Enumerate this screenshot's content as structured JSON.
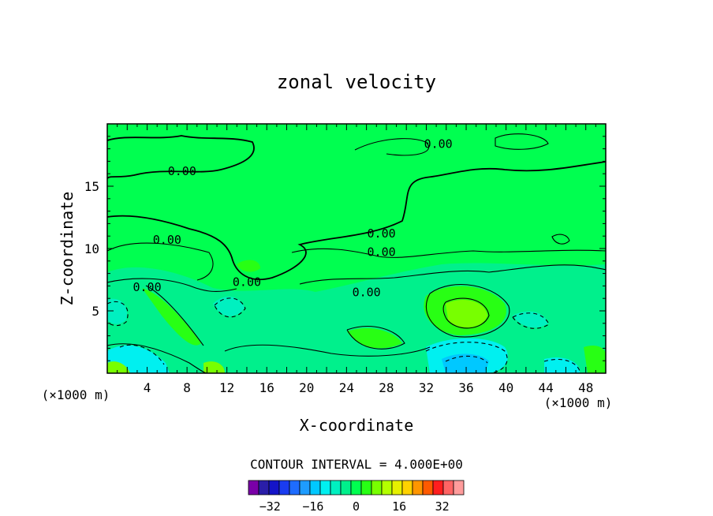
{
  "chart_data": {
    "type": "heatmap",
    "subtype": "filled-contour",
    "title": "zonal velocity",
    "xlabel": "X-coordinate",
    "ylabel": "Z-coordinate",
    "x_unit_label_left": "(×1000 m)",
    "x_unit_label_right": "(×1000 m)",
    "xlim": [
      0,
      50
    ],
    "ylim": [
      0,
      20
    ],
    "x_ticks": [
      4,
      8,
      12,
      16,
      20,
      24,
      28,
      32,
      36,
      40,
      44,
      48
    ],
    "y_ticks": [
      5,
      10,
      15
    ],
    "contour_interval_text": "CONTOUR INTERVAL = 4.000E+00",
    "contour_labels": [
      {
        "text": "0.00",
        "x": 7.5,
        "y": 16.2
      },
      {
        "text": "0.00",
        "x": 6.0,
        "y": 10.7
      },
      {
        "text": "0.00",
        "x": 4.0,
        "y": 6.9
      },
      {
        "text": "0.00",
        "x": 14.0,
        "y": 7.3
      },
      {
        "text": "0.00",
        "x": 33.2,
        "y": 18.4
      },
      {
        "text": "0.00",
        "x": 27.5,
        "y": 11.2
      },
      {
        "text": "0.00",
        "x": 27.5,
        "y": 9.7
      },
      {
        "text": "0.00",
        "x": 26.0,
        "y": 6.5
      }
    ],
    "colorbar": {
      "levels": [
        -40,
        -36,
        -32,
        -28,
        -24,
        -20,
        -16,
        -12,
        -8,
        -4,
        0,
        4,
        8,
        12,
        16,
        20,
        24,
        28,
        32,
        36,
        40
      ],
      "colors": [
        "#7a00a8",
        "#2a1ea8",
        "#1414c8",
        "#1a3cf0",
        "#1e6cff",
        "#1e9cff",
        "#00c8ff",
        "#00f0f0",
        "#00f0c0",
        "#00f08c",
        "#00ff50",
        "#28ff14",
        "#78ff00",
        "#b4ff00",
        "#e6f000",
        "#ffd200",
        "#ff9600",
        "#ff5a00",
        "#ff1e1e",
        "#ff6464",
        "#ff9c9c"
      ],
      "tick_labels": [
        "-32",
        "-16",
        "0",
        "16",
        "32"
      ],
      "tick_values": [
        -32,
        -16,
        0,
        16,
        32
      ]
    }
  }
}
